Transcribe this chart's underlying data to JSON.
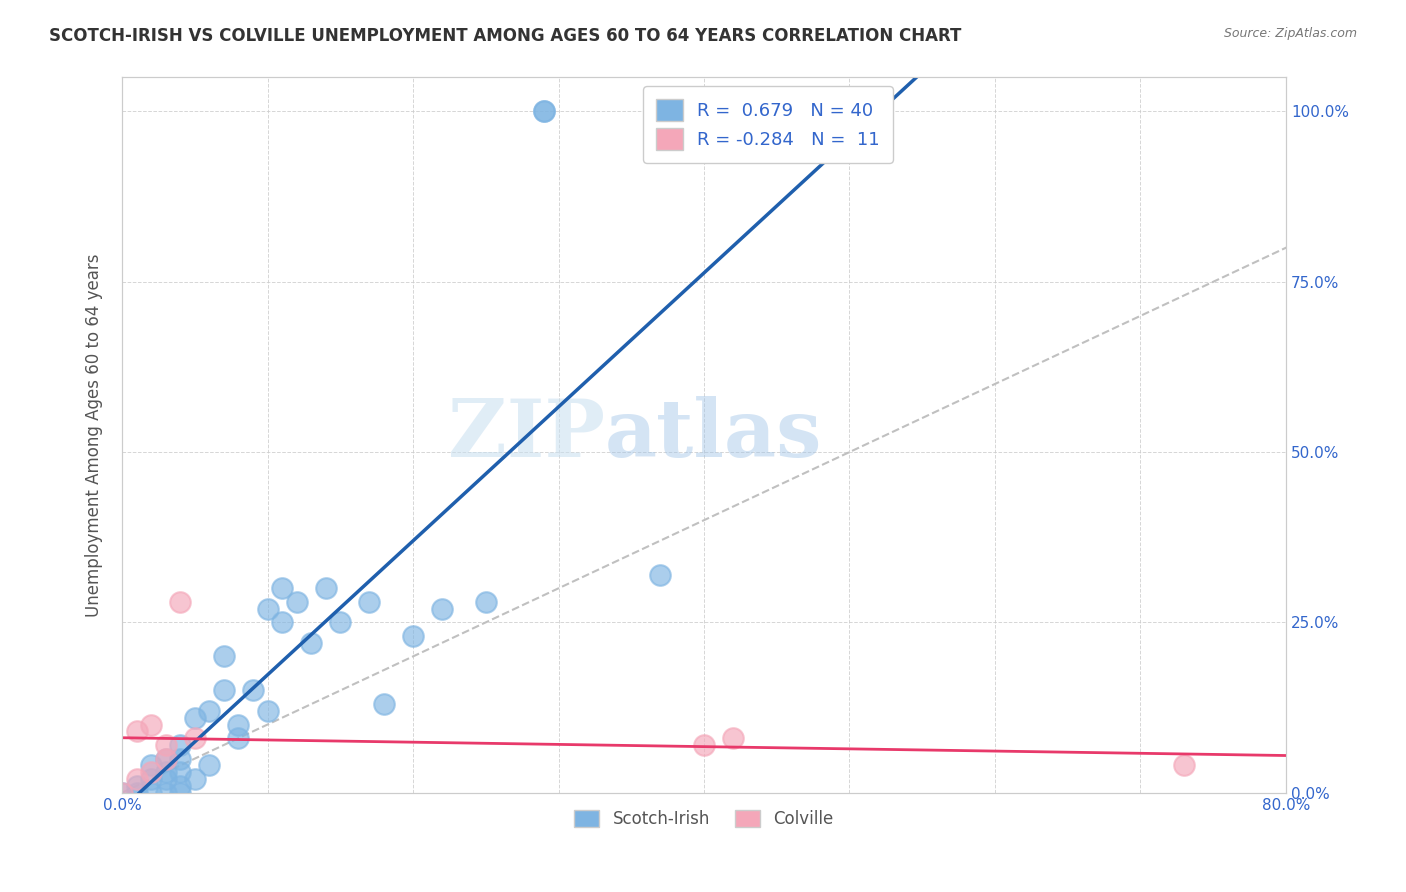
{
  "title": "SCOTCH-IRISH VS COLVILLE UNEMPLOYMENT AMONG AGES 60 TO 64 YEARS CORRELATION CHART",
  "source": "Source: ZipAtlas.com",
  "ylabel": "Unemployment Among Ages 60 to 64 years",
  "xlim": [
    0.0,
    0.8
  ],
  "ylim": [
    0.0,
    1.05
  ],
  "xticks": [
    0.0,
    0.1,
    0.2,
    0.3,
    0.4,
    0.5,
    0.6,
    0.7,
    0.8
  ],
  "xticklabels": [
    "0.0%",
    "",
    "",
    "",
    "",
    "",
    "",
    "",
    "80.0%"
  ],
  "yticks": [
    0.0,
    0.25,
    0.5,
    0.75,
    1.0
  ],
  "yticklabels_right": [
    "0.0%",
    "25.0%",
    "50.0%",
    "75.0%",
    "100.0%"
  ],
  "scotch_irish_color": "#7EB4E2",
  "colville_color": "#F4A7B9",
  "scotch_irish_line_color": "#1F5FAD",
  "colville_line_color": "#E8396A",
  "diagonal_color": "#C0C0C0",
  "background_color": "#FFFFFF",
  "watermark_zip": "ZIP",
  "watermark_atlas": "atlas",
  "scotch_irish_x": [
    0.0,
    0.01,
    0.01,
    0.02,
    0.02,
    0.02,
    0.03,
    0.03,
    0.03,
    0.03,
    0.04,
    0.04,
    0.04,
    0.04,
    0.04,
    0.05,
    0.05,
    0.06,
    0.06,
    0.07,
    0.07,
    0.08,
    0.08,
    0.09,
    0.1,
    0.1,
    0.11,
    0.11,
    0.12,
    0.13,
    0.14,
    0.15,
    0.17,
    0.18,
    0.2,
    0.22,
    0.25,
    0.29,
    0.29,
    0.37
  ],
  "scotch_irish_y": [
    0.0,
    0.0,
    0.01,
    0.0,
    0.02,
    0.04,
    0.0,
    0.02,
    0.03,
    0.05,
    0.0,
    0.01,
    0.03,
    0.05,
    0.07,
    0.02,
    0.11,
    0.04,
    0.12,
    0.15,
    0.2,
    0.08,
    0.1,
    0.15,
    0.12,
    0.27,
    0.25,
    0.3,
    0.28,
    0.22,
    0.3,
    0.25,
    0.28,
    0.13,
    0.23,
    0.27,
    0.28,
    1.0,
    1.0,
    0.32
  ],
  "colville_x": [
    0.0,
    0.01,
    0.01,
    0.02,
    0.02,
    0.03,
    0.03,
    0.04,
    0.05,
    0.4,
    0.42,
    0.73
  ],
  "colville_y": [
    0.0,
    0.02,
    0.09,
    0.03,
    0.1,
    0.05,
    0.07,
    0.28,
    0.08,
    0.07,
    0.08,
    0.04
  ]
}
